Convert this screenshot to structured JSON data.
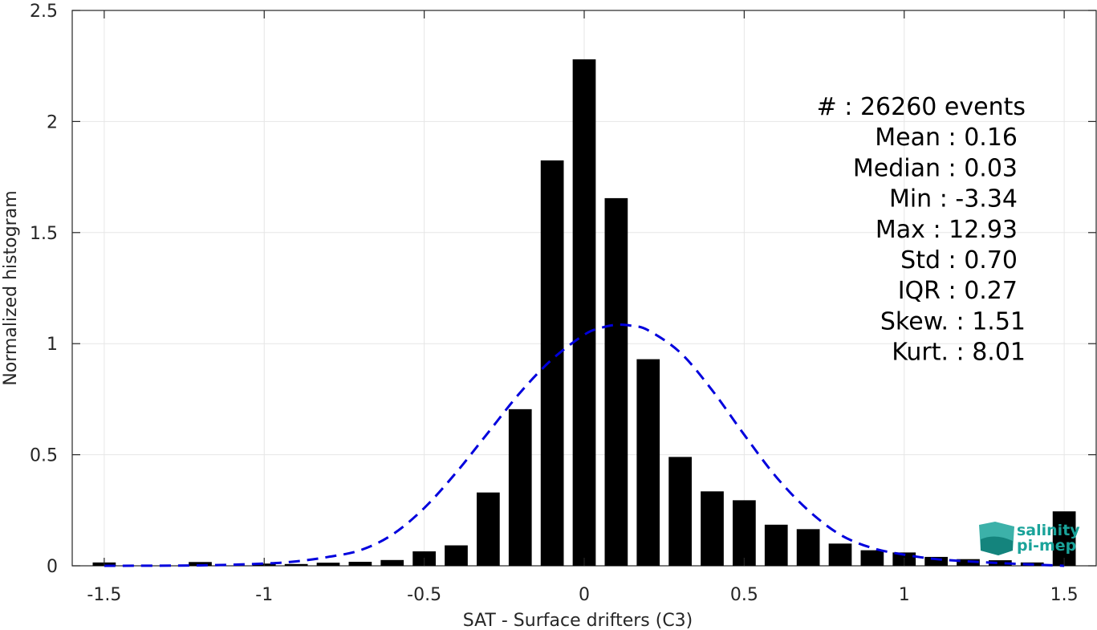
{
  "chart_data": {
    "type": "bar",
    "xlabel": "SAT - Surface drifters (C3)",
    "ylabel": "Normalized histogram",
    "xlim": [
      -1.6,
      1.6
    ],
    "ylim": [
      0,
      2.5
    ],
    "xticks": [
      -1.5,
      -1,
      -0.5,
      0,
      0.5,
      1,
      1.5
    ],
    "xtick_labels": [
      "-1.5",
      "-1",
      "-0.5",
      "0",
      "0.5",
      "1",
      "1.5"
    ],
    "yticks": [
      0,
      0.5,
      1,
      1.5,
      2,
      2.5
    ],
    "ytick_labels": [
      "0",
      "0.5",
      "1",
      "1.5",
      "2",
      "2.5"
    ],
    "grid": true,
    "bar_color": "#000000",
    "fit_color": "#0000dd",
    "bins": {
      "x": [
        -1.5,
        -1.2,
        -1.0,
        -0.9,
        -0.8,
        -0.7,
        -0.6,
        -0.5,
        -0.4,
        -0.3,
        -0.2,
        -0.1,
        0.0,
        0.1,
        0.2,
        0.3,
        0.4,
        0.5,
        0.6,
        0.7,
        0.8,
        0.9,
        1.0,
        1.1,
        1.2,
        1.3,
        1.4,
        1.5
      ],
      "values": [
        0.015,
        0.017,
        0.01,
        0.008,
        0.014,
        0.018,
        0.026,
        0.065,
        0.092,
        0.33,
        0.705,
        1.825,
        2.28,
        1.655,
        0.93,
        0.49,
        0.335,
        0.295,
        0.185,
        0.165,
        0.1,
        0.07,
        0.06,
        0.04,
        0.03,
        0.025,
        0.015,
        0.245
      ]
    },
    "gaussian_fit": {
      "x": [
        -1.5,
        -1.2,
        -1.0,
        -0.9,
        -0.8,
        -0.7,
        -0.6,
        -0.5,
        -0.4,
        -0.3,
        -0.2,
        -0.1,
        0.0,
        0.05,
        0.1,
        0.15,
        0.2,
        0.3,
        0.4,
        0.5,
        0.6,
        0.7,
        0.8,
        0.9,
        1.0,
        1.1,
        1.2,
        1.3,
        1.4,
        1.5
      ],
      "values": [
        0.0,
        0.002,
        0.01,
        0.02,
        0.04,
        0.07,
        0.14,
        0.26,
        0.42,
        0.6,
        0.78,
        0.93,
        1.04,
        1.07,
        1.085,
        1.08,
        1.06,
        0.96,
        0.79,
        0.59,
        0.4,
        0.25,
        0.14,
        0.08,
        0.05,
        0.03,
        0.02,
        0.012,
        0.006,
        0.0
      ]
    },
    "annotations": [
      "#  : 26260 events",
      "Mean : 0.16",
      "Median : 0.03",
      "Min : -3.34",
      "Max : 12.93",
      "Std : 0.70",
      "IQR : 0.27",
      "Skew. : 1.51",
      "Kurt. : 8.01"
    ]
  },
  "logo": {
    "line1": "salinity",
    "line2": "pi-mep"
  },
  "colors": {
    "logo_teal": "#1aa39a",
    "grid": "#e6e6e6",
    "axis": "#262626"
  }
}
